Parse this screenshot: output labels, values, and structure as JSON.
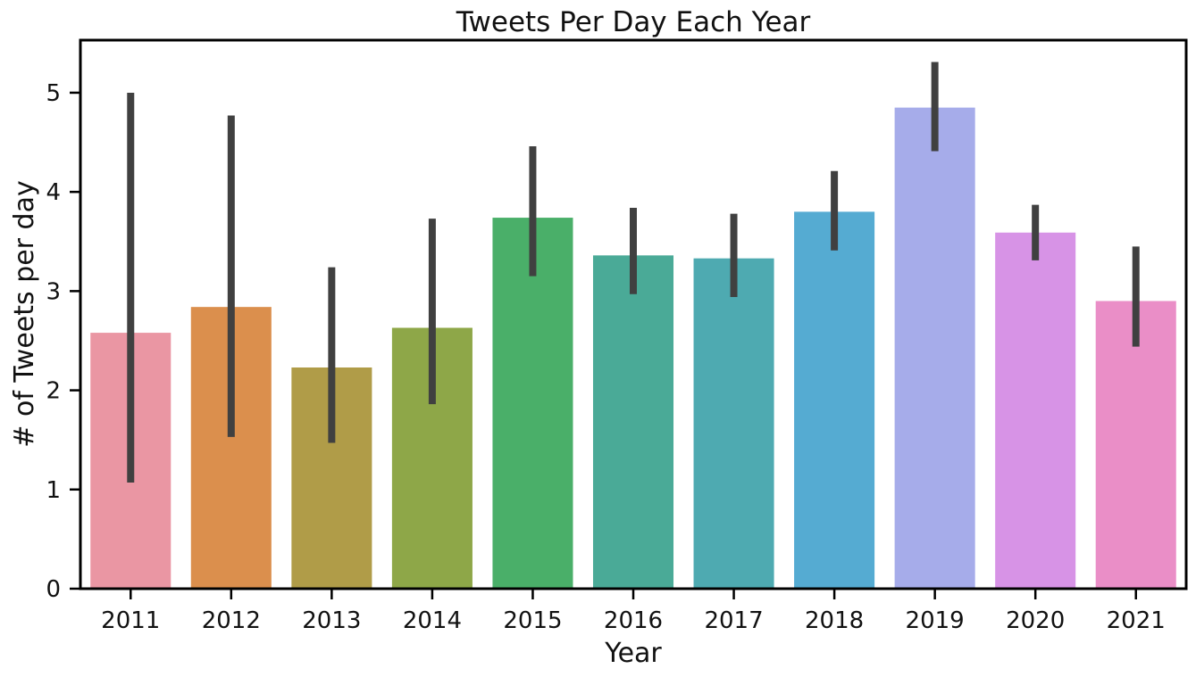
{
  "chart_data": {
    "type": "bar",
    "title": "Tweets Per Day Each Year",
    "xlabel": "Year",
    "ylabel": "# of Tweets per day",
    "categories": [
      "2011",
      "2012",
      "2013",
      "2014",
      "2015",
      "2016",
      "2017",
      "2018",
      "2019",
      "2020",
      "2021"
    ],
    "values": [
      2.58,
      2.84,
      2.23,
      2.63,
      3.74,
      3.36,
      3.33,
      3.8,
      4.85,
      3.59,
      2.9
    ],
    "error_low": [
      1.07,
      1.53,
      1.47,
      1.86,
      3.15,
      2.97,
      2.94,
      3.41,
      4.41,
      3.31,
      2.44
    ],
    "error_high": [
      5.0,
      4.77,
      3.24,
      3.73,
      4.46,
      3.84,
      3.78,
      4.21,
      5.31,
      3.87,
      3.45
    ],
    "colors": [
      "#ea96a3",
      "#db8f4d",
      "#b09c48",
      "#8ea748",
      "#4aaf69",
      "#4aaa97",
      "#4eaab1",
      "#55abd2",
      "#a6acea",
      "#d793e6",
      "#ea8ec7"
    ],
    "error_color": "#404040",
    "ylim": [
      0,
      5.53
    ],
    "yticks": [
      0,
      1,
      2,
      3,
      4,
      5
    ],
    "grid": false,
    "legend": false
  }
}
